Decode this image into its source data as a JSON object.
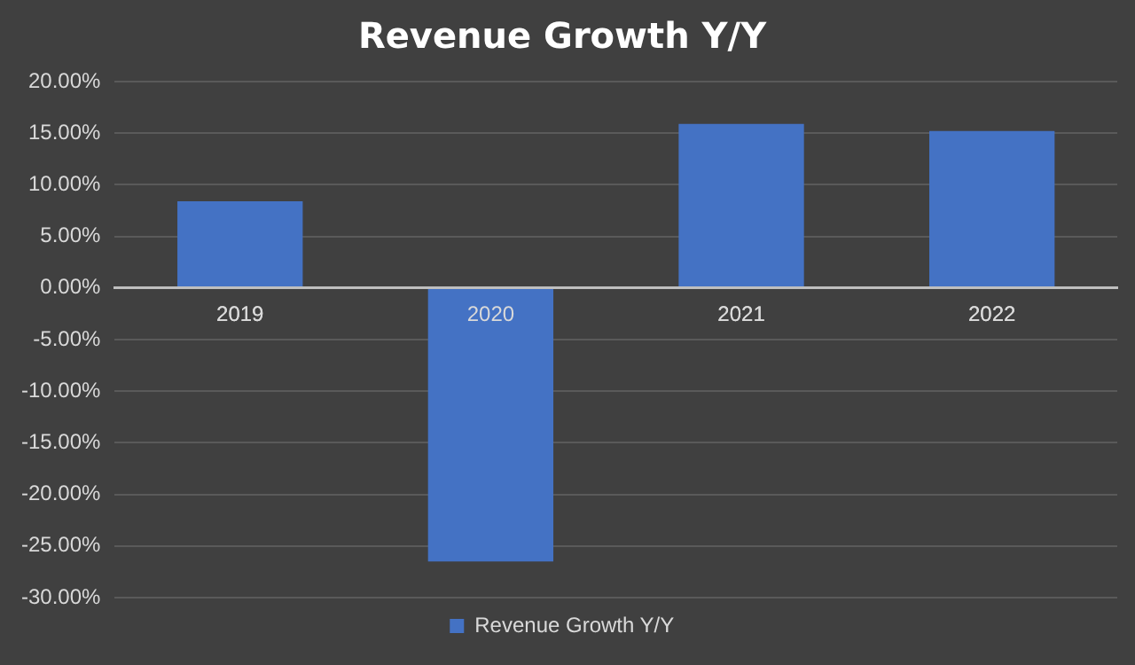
{
  "chart_data": {
    "type": "bar",
    "title": "Revenue Growth Y/Y",
    "categories": [
      "2019",
      "2020",
      "2021",
      "2022"
    ],
    "series": [
      {
        "name": "Revenue Growth Y/Y",
        "color": "#4472c4",
        "values": [
          8.4,
          -26.5,
          15.9,
          15.2
        ]
      }
    ],
    "ylim": [
      -30,
      20
    ],
    "yticks": [
      {
        "value": -30,
        "label": "-30.00%"
      },
      {
        "value": -25,
        "label": "-25.00%"
      },
      {
        "value": -20,
        "label": "-20.00%"
      },
      {
        "value": -15,
        "label": "-15.00%"
      },
      {
        "value": -10,
        "label": "-10.00%"
      },
      {
        "value": -5,
        "label": "-5.00%"
      },
      {
        "value": 0,
        "label": "0.00%"
      },
      {
        "value": 5,
        "label": "5.00%"
      },
      {
        "value": 10,
        "label": "10.00%"
      },
      {
        "value": 15,
        "label": "15.00%"
      },
      {
        "value": 20,
        "label": "20.00%"
      }
    ],
    "grid": "y",
    "legend": "bottom"
  }
}
